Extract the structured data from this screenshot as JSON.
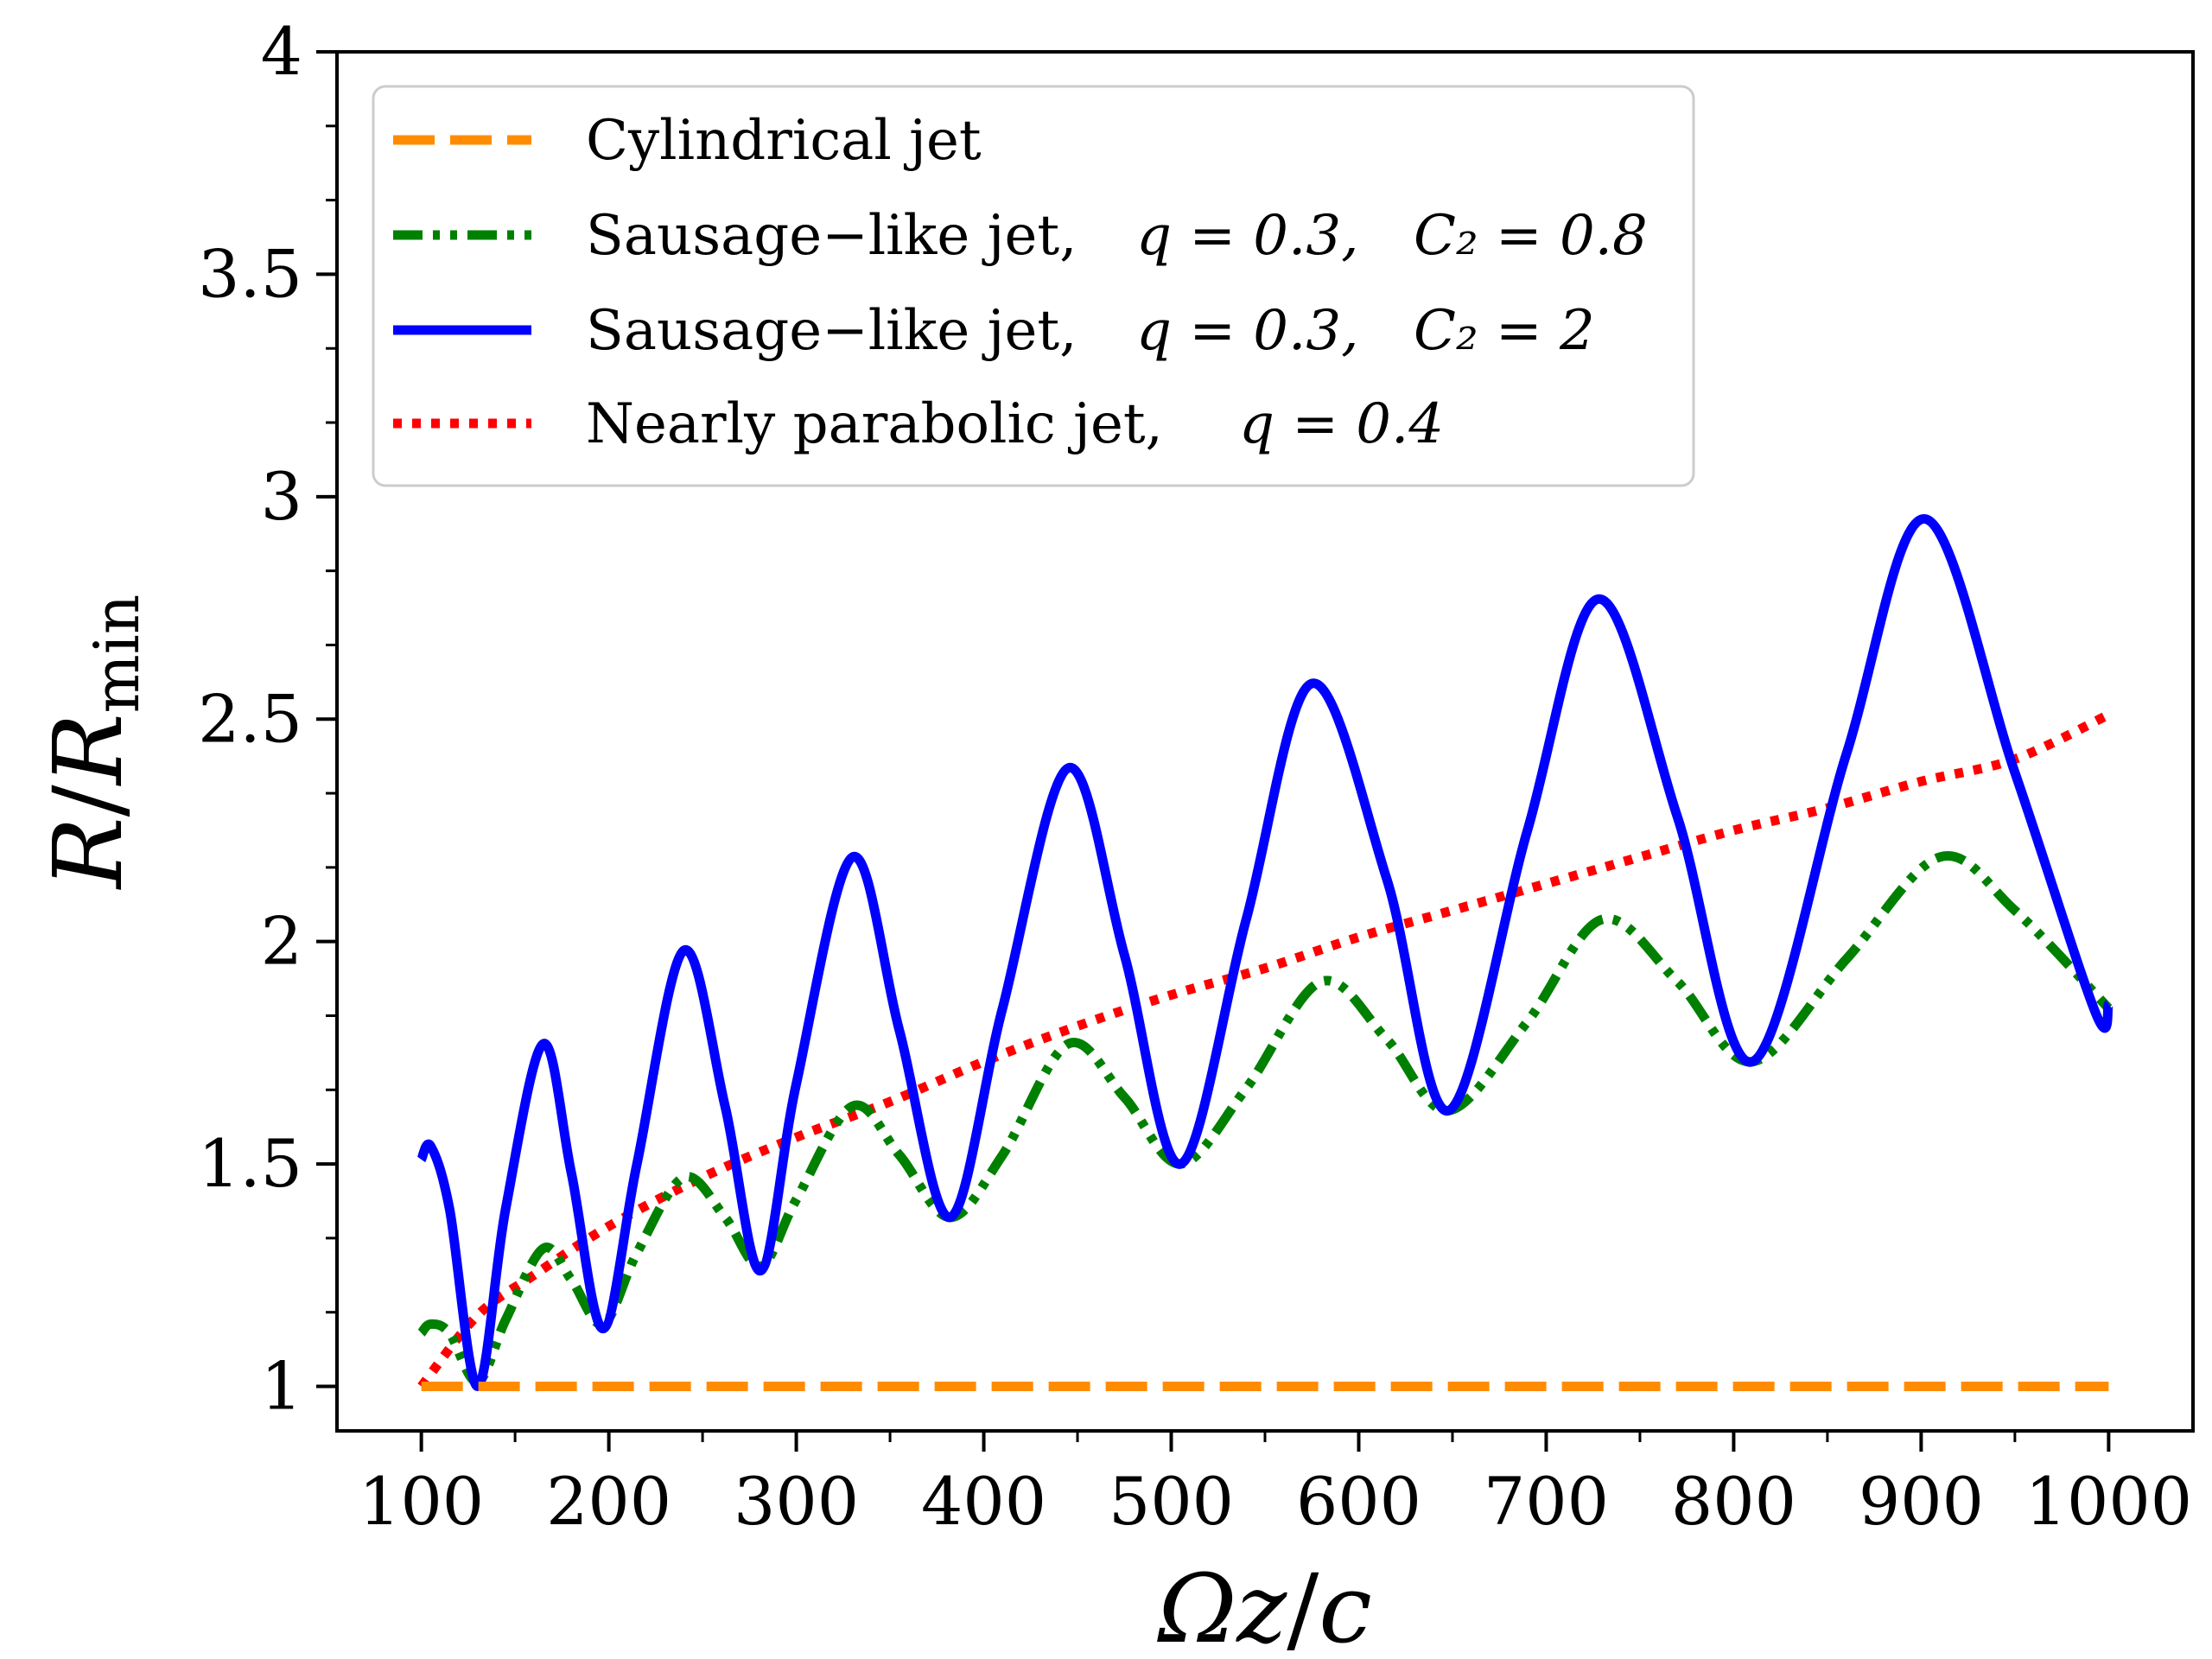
{
  "chart_data": {
    "type": "line",
    "xlabel_main": "Ωz",
    "xlabel_sep": "/",
    "xlabel_den": "c",
    "ylabel_main": "R",
    "ylabel_sep": "/",
    "ylabel_den": "R",
    "ylabel_sub": "min",
    "xlim": [
      55,
      1045
    ],
    "ylim": [
      0.9,
      4.0
    ],
    "xticks": [
      100,
      200,
      300,
      400,
      500,
      600,
      700,
      800,
      900,
      1000
    ],
    "xtick_labels": [
      "100",
      "200",
      "300",
      "400",
      "500",
      "600",
      "700",
      "800",
      "900",
      "1000"
    ],
    "yticks": [
      1,
      1.5,
      2,
      2.5,
      3,
      3.5,
      4
    ],
    "ytick_labels": [
      "1",
      "1.5",
      "2",
      "2.5",
      "3",
      "3.5",
      "4"
    ],
    "x_minor_step": 50,
    "y_minor_step": 0.1666667,
    "legend": {
      "position": "top-left",
      "entries": [
        {
          "text": "Cylindrical jet",
          "param1": "",
          "param2": ""
        },
        {
          "text": "Sausage−like jet,",
          "param1": "q = 0.3,",
          "param2": "C₂ = 0.8"
        },
        {
          "text": "Sausage−like jet,",
          "param1": "q = 0.3,",
          "param2": "C₂ = 2"
        },
        {
          "text": "Nearly parabolic jet,",
          "param1": "q = 0.4",
          "param2": ""
        }
      ]
    },
    "series": [
      {
        "name": "Cylindrical jet",
        "color": "#ff8c00",
        "style": "dashed",
        "x": [
          100,
          1000
        ],
        "y": [
          1.0,
          1.0
        ]
      },
      {
        "name": "Sausage−like jet, q = 0.3, C₂ = 0.8",
        "color": "#008000",
        "style": "dashdotdot",
        "x": [
          100,
          105,
          115,
          130,
          145,
          165,
          180,
          197,
          215,
          240,
          262,
          281,
          300,
          330,
          355,
          382,
          410,
          445,
          475,
          505,
          540,
          580,
          615,
          648,
          690,
          730,
          770,
          810,
          860,
          910,
          950,
          1000
        ],
        "y": [
          1.12,
          1.14,
          1.12,
          1.01,
          1.15,
          1.31,
          1.24,
          1.14,
          1.3,
          1.47,
          1.38,
          1.27,
          1.42,
          1.63,
          1.52,
          1.38,
          1.52,
          1.77,
          1.65,
          1.5,
          1.67,
          1.91,
          1.78,
          1.62,
          1.82,
          2.05,
          1.91,
          1.73,
          1.96,
          2.19,
          2.07,
          1.85
        ]
      },
      {
        "name": "Sausage−like jet, q = 0.3, C₂ = 2",
        "color": "#0000ff",
        "style": "solid",
        "x": [
          100,
          105,
          115,
          130,
          145,
          165,
          180,
          197,
          215,
          240,
          262,
          281,
          300,
          330,
          355,
          382,
          410,
          445,
          475,
          505,
          540,
          575,
          615,
          648,
          690,
          728,
          770,
          810,
          860,
          902,
          950,
          993,
          1000
        ],
        "y": [
          1.51,
          1.54,
          1.4,
          1.0,
          1.4,
          1.77,
          1.48,
          1.13,
          1.5,
          1.98,
          1.63,
          1.26,
          1.68,
          2.19,
          1.8,
          1.38,
          1.85,
          2.39,
          1.97,
          1.5,
          2.05,
          2.58,
          2.14,
          1.62,
          2.25,
          2.77,
          2.28,
          1.73,
          2.42,
          2.95,
          2.38,
          1.84,
          1.86
        ]
      },
      {
        "name": "Nearly parabolic jet, q = 0.4",
        "color": "#ff0000",
        "style": "dotted",
        "x": [
          100,
          130,
          160,
          200,
          250,
          300,
          350,
          400,
          450,
          500,
          550,
          600,
          650,
          700,
          750,
          800,
          850,
          900,
          950,
          1000
        ],
        "y": [
          1.0,
          1.16,
          1.25,
          1.36,
          1.47,
          1.56,
          1.64,
          1.73,
          1.81,
          1.88,
          1.94,
          2.01,
          2.07,
          2.13,
          2.19,
          2.25,
          2.3,
          2.36,
          2.41,
          2.51
        ]
      }
    ]
  }
}
